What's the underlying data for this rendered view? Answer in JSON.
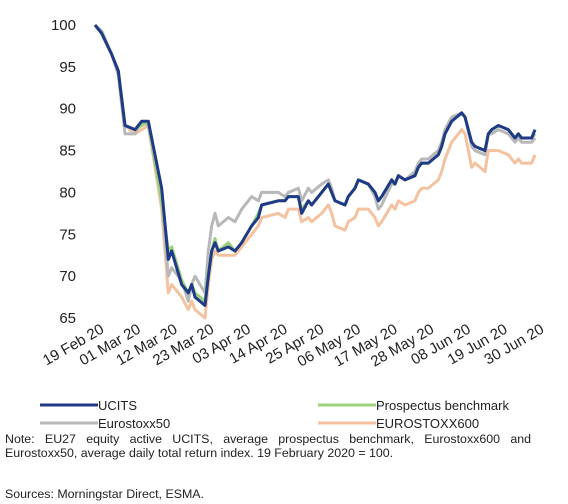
{
  "chart_data": {
    "type": "line",
    "x": [
      "2020-02-19",
      "2020-02-21",
      "2020-02-24",
      "2020-02-26",
      "2020-02-28",
      "2020-03-02",
      "2020-03-04",
      "2020-03-06",
      "2020-03-10",
      "2020-03-12",
      "2020-03-13",
      "2020-03-16",
      "2020-03-18",
      "2020-03-19",
      "2020-03-20",
      "2020-03-23",
      "2020-03-24",
      "2020-03-25",
      "2020-03-26",
      "2020-03-27",
      "2020-03-30",
      "2020-04-01",
      "2020-04-03",
      "2020-04-06",
      "2020-04-08",
      "2020-04-09",
      "2020-04-14",
      "2020-04-16",
      "2020-04-17",
      "2020-04-20",
      "2020-04-21",
      "2020-04-23",
      "2020-04-24",
      "2020-04-27",
      "2020-04-29",
      "2020-04-30",
      "2020-05-01",
      "2020-05-04",
      "2020-05-05",
      "2020-05-07",
      "2020-05-08",
      "2020-05-11",
      "2020-05-13",
      "2020-05-14",
      "2020-05-15",
      "2020-05-18",
      "2020-05-19",
      "2020-05-20",
      "2020-05-22",
      "2020-05-25",
      "2020-05-26",
      "2020-05-27",
      "2020-05-29",
      "2020-06-01",
      "2020-06-02",
      "2020-06-03",
      "2020-06-05",
      "2020-06-08",
      "2020-06-09",
      "2020-06-11",
      "2020-06-12",
      "2020-06-15",
      "2020-06-16",
      "2020-06-17",
      "2020-06-19",
      "2020-06-22",
      "2020-06-24",
      "2020-06-25",
      "2020-06-26",
      "2020-06-29",
      "2020-06-30"
    ],
    "series": [
      {
        "name": "EUROSTOXX600",
        "color": "#f5c2a0",
        "values": [
          100,
          99,
          96.5,
          94.5,
          88,
          87,
          87.5,
          88,
          78,
          68,
          69,
          67.5,
          66,
          67,
          66,
          65,
          69,
          72,
          73,
          72.5,
          72.5,
          72.5,
          73.5,
          75,
          76,
          77,
          77.5,
          77,
          78,
          78,
          76.5,
          77,
          76.5,
          77.5,
          78.5,
          77.5,
          76,
          75.5,
          76.5,
          77,
          78,
          78,
          77,
          76,
          76.5,
          78.5,
          78,
          79,
          78.5,
          79,
          80,
          80.5,
          80.5,
          81.5,
          82.5,
          84,
          86,
          87.5,
          87,
          83,
          83.5,
          82.5,
          85,
          85,
          85,
          84.5,
          83.5,
          84,
          83.5,
          83.5,
          84.5
        ]
      },
      {
        "name": "Eurostoxx50",
        "color": "#b8b8b8",
        "values": [
          100,
          99.3,
          96.5,
          94,
          87,
          87,
          88.5,
          88,
          79,
          70,
          71,
          69.5,
          67,
          69,
          70,
          68,
          73,
          76,
          77.5,
          76,
          77,
          76.5,
          78,
          79.5,
          79,
          80,
          80,
          79.5,
          80,
          80.5,
          79,
          80.5,
          80,
          81,
          81.5,
          80.5,
          79,
          78.5,
          79.5,
          80.5,
          81.5,
          81,
          79.5,
          78,
          78.5,
          81,
          81,
          82,
          81.5,
          82.5,
          83.5,
          84,
          84,
          85,
          86,
          87.5,
          89,
          89.5,
          89,
          85.5,
          85,
          84.5,
          87,
          87,
          87.5,
          87,
          86,
          86.5,
          86,
          86,
          86.5
        ]
      },
      {
        "name": "Prospectus benchmark",
        "color": "#9bd17a",
        "values": [
          100,
          99,
          96.5,
          94.5,
          88,
          87.5,
          88,
          88.5,
          79,
          73,
          73.5,
          69.5,
          68,
          69,
          68,
          67,
          70.5,
          73,
          74.5,
          73,
          74,
          73,
          74,
          76,
          77.5,
          78.5,
          79,
          79,
          79.5,
          79.5,
          78,
          79,
          78.5,
          80,
          81,
          80,
          79,
          78.5,
          79.5,
          80.5,
          81.5,
          81,
          80,
          79,
          79.5,
          81.5,
          81,
          82,
          81.5,
          82,
          83,
          83.5,
          83.5,
          84.5,
          85.5,
          87,
          88.5,
          89.5,
          89,
          86,
          85.5,
          85,
          87,
          87.5,
          88,
          87.5,
          86.5,
          87,
          86.5,
          86.5,
          87
        ]
      },
      {
        "name": "UCITS",
        "color": "#1f3a86",
        "values": [
          100,
          99,
          96.5,
          94.5,
          88,
          87.5,
          88.5,
          88.5,
          80.5,
          72,
          73,
          69,
          68,
          69,
          67.5,
          66.5,
          70,
          73,
          74,
          73,
          73.5,
          73,
          74,
          76,
          77,
          78.5,
          79,
          79,
          79.5,
          79.5,
          77.5,
          79,
          78.5,
          80,
          81,
          80,
          79,
          78.5,
          79.5,
          80.5,
          81.5,
          81,
          80,
          79,
          79.5,
          81.5,
          81,
          82,
          81.5,
          82,
          83,
          83.5,
          83.5,
          84.5,
          85.5,
          87,
          88.5,
          89.5,
          89,
          86,
          85.5,
          85,
          87,
          87.5,
          88,
          87.5,
          86.5,
          87,
          86.5,
          86.5,
          87.5
        ]
      }
    ],
    "xlim": [
      "2020-02-19",
      "2020-06-30"
    ],
    "xticks": [
      {
        "value": "2020-02-19",
        "label": "19 Feb 20"
      },
      {
        "value": "2020-03-01",
        "label": "01 Mar 20"
      },
      {
        "value": "2020-03-12",
        "label": "12 Mar 20"
      },
      {
        "value": "2020-03-23",
        "label": "23 Mar 20"
      },
      {
        "value": "2020-04-03",
        "label": "03 Apr 20"
      },
      {
        "value": "2020-04-14",
        "label": "14 Apr 20"
      },
      {
        "value": "2020-04-25",
        "label": "25 Apr 20"
      },
      {
        "value": "2020-05-06",
        "label": "06 May 20"
      },
      {
        "value": "2020-05-17",
        "label": "17 May 20"
      },
      {
        "value": "2020-05-28",
        "label": "28 May 20"
      },
      {
        "value": "2020-06-08",
        "label": "08 Jun 20"
      },
      {
        "value": "2020-06-19",
        "label": "19 Jun 20"
      },
      {
        "value": "2020-06-30",
        "label": "30 Jun 20"
      }
    ],
    "ylim": [
      65,
      100
    ],
    "yticks": [
      65,
      70,
      75,
      80,
      85,
      90,
      95,
      100
    ],
    "grid": false,
    "legend": [
      "UCITS",
      "Prospectus benchmark",
      "Eurostoxx50",
      "EUROSTOXX600"
    ],
    "note": "Note: EU27 equity active UCITS, average prospectus benchmark, Eurostoxx600 and Eurostoxx50, average daily total return index. 19 February 2020 = 100.",
    "source": "Sources: Morningstar Direct, ESMA."
  }
}
